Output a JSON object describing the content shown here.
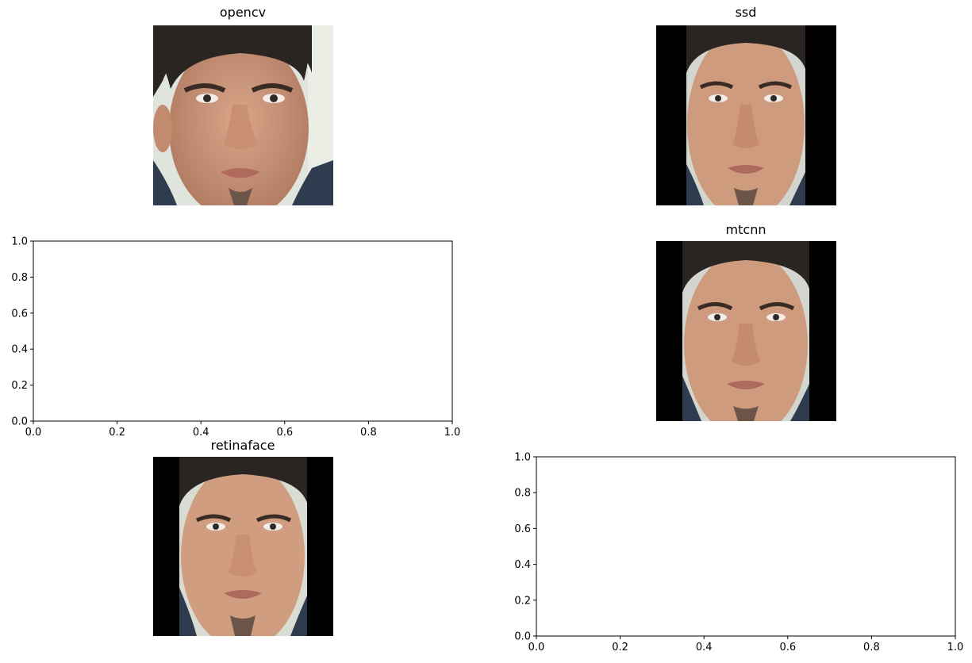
{
  "panels": {
    "opencv": {
      "title": "opencv"
    },
    "ssd": {
      "title": "ssd"
    },
    "mtcnn": {
      "title": "mtcnn"
    },
    "retinaface": {
      "title": "retinaface"
    }
  },
  "chart_data": [
    {
      "type": "scatter",
      "title": "",
      "xlabel": "",
      "ylabel": "",
      "xlim": [
        0.0,
        1.0
      ],
      "ylim": [
        0.0,
        1.0
      ],
      "x_ticks": [
        "0.0",
        "0.2",
        "0.4",
        "0.6",
        "0.8",
        "1.0"
      ],
      "y_ticks": [
        "0.0",
        "0.2",
        "0.4",
        "0.6",
        "0.8",
        "1.0"
      ],
      "series": [],
      "grid": false
    },
    {
      "type": "scatter",
      "title": "",
      "xlabel": "",
      "ylabel": "",
      "xlim": [
        0.0,
        1.0
      ],
      "ylim": [
        0.0,
        1.0
      ],
      "x_ticks": [
        "0.0",
        "0.2",
        "0.4",
        "0.6",
        "0.8",
        "1.0"
      ],
      "y_ticks": [
        "0.0",
        "0.2",
        "0.4",
        "0.6",
        "0.8",
        "1.0"
      ],
      "series": [],
      "grid": false
    }
  ]
}
